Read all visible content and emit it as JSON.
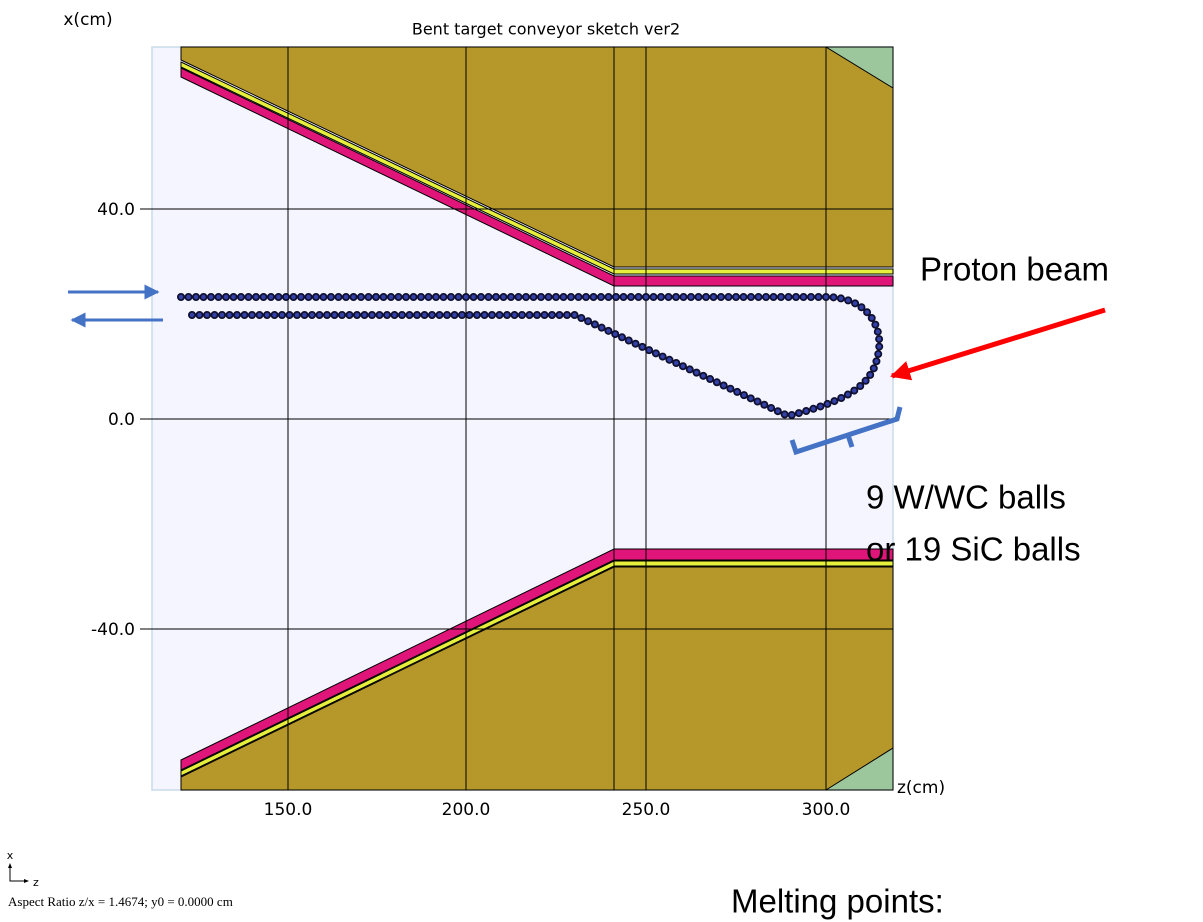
{
  "title": "Bent target conveyor sketch ver2",
  "axes": {
    "x_label": "x(cm)",
    "z_label": "z(cm)",
    "x_ticks": [
      "40.0",
      "0.0",
      "-40.0"
    ],
    "z_ticks": [
      "150.0",
      "200.0",
      "250.0",
      "300.0"
    ]
  },
  "annotations": {
    "proton_beam": "Proton beam",
    "balls_line1": "9 W/WC balls",
    "balls_line2": "or 19 SiC balls",
    "melting_points": "Melting points:"
  },
  "orientation": {
    "x": "x",
    "z": "z"
  },
  "footer": "Aspect Ratio z/x =  1.4674; y0 =  0.0000 cm"
}
